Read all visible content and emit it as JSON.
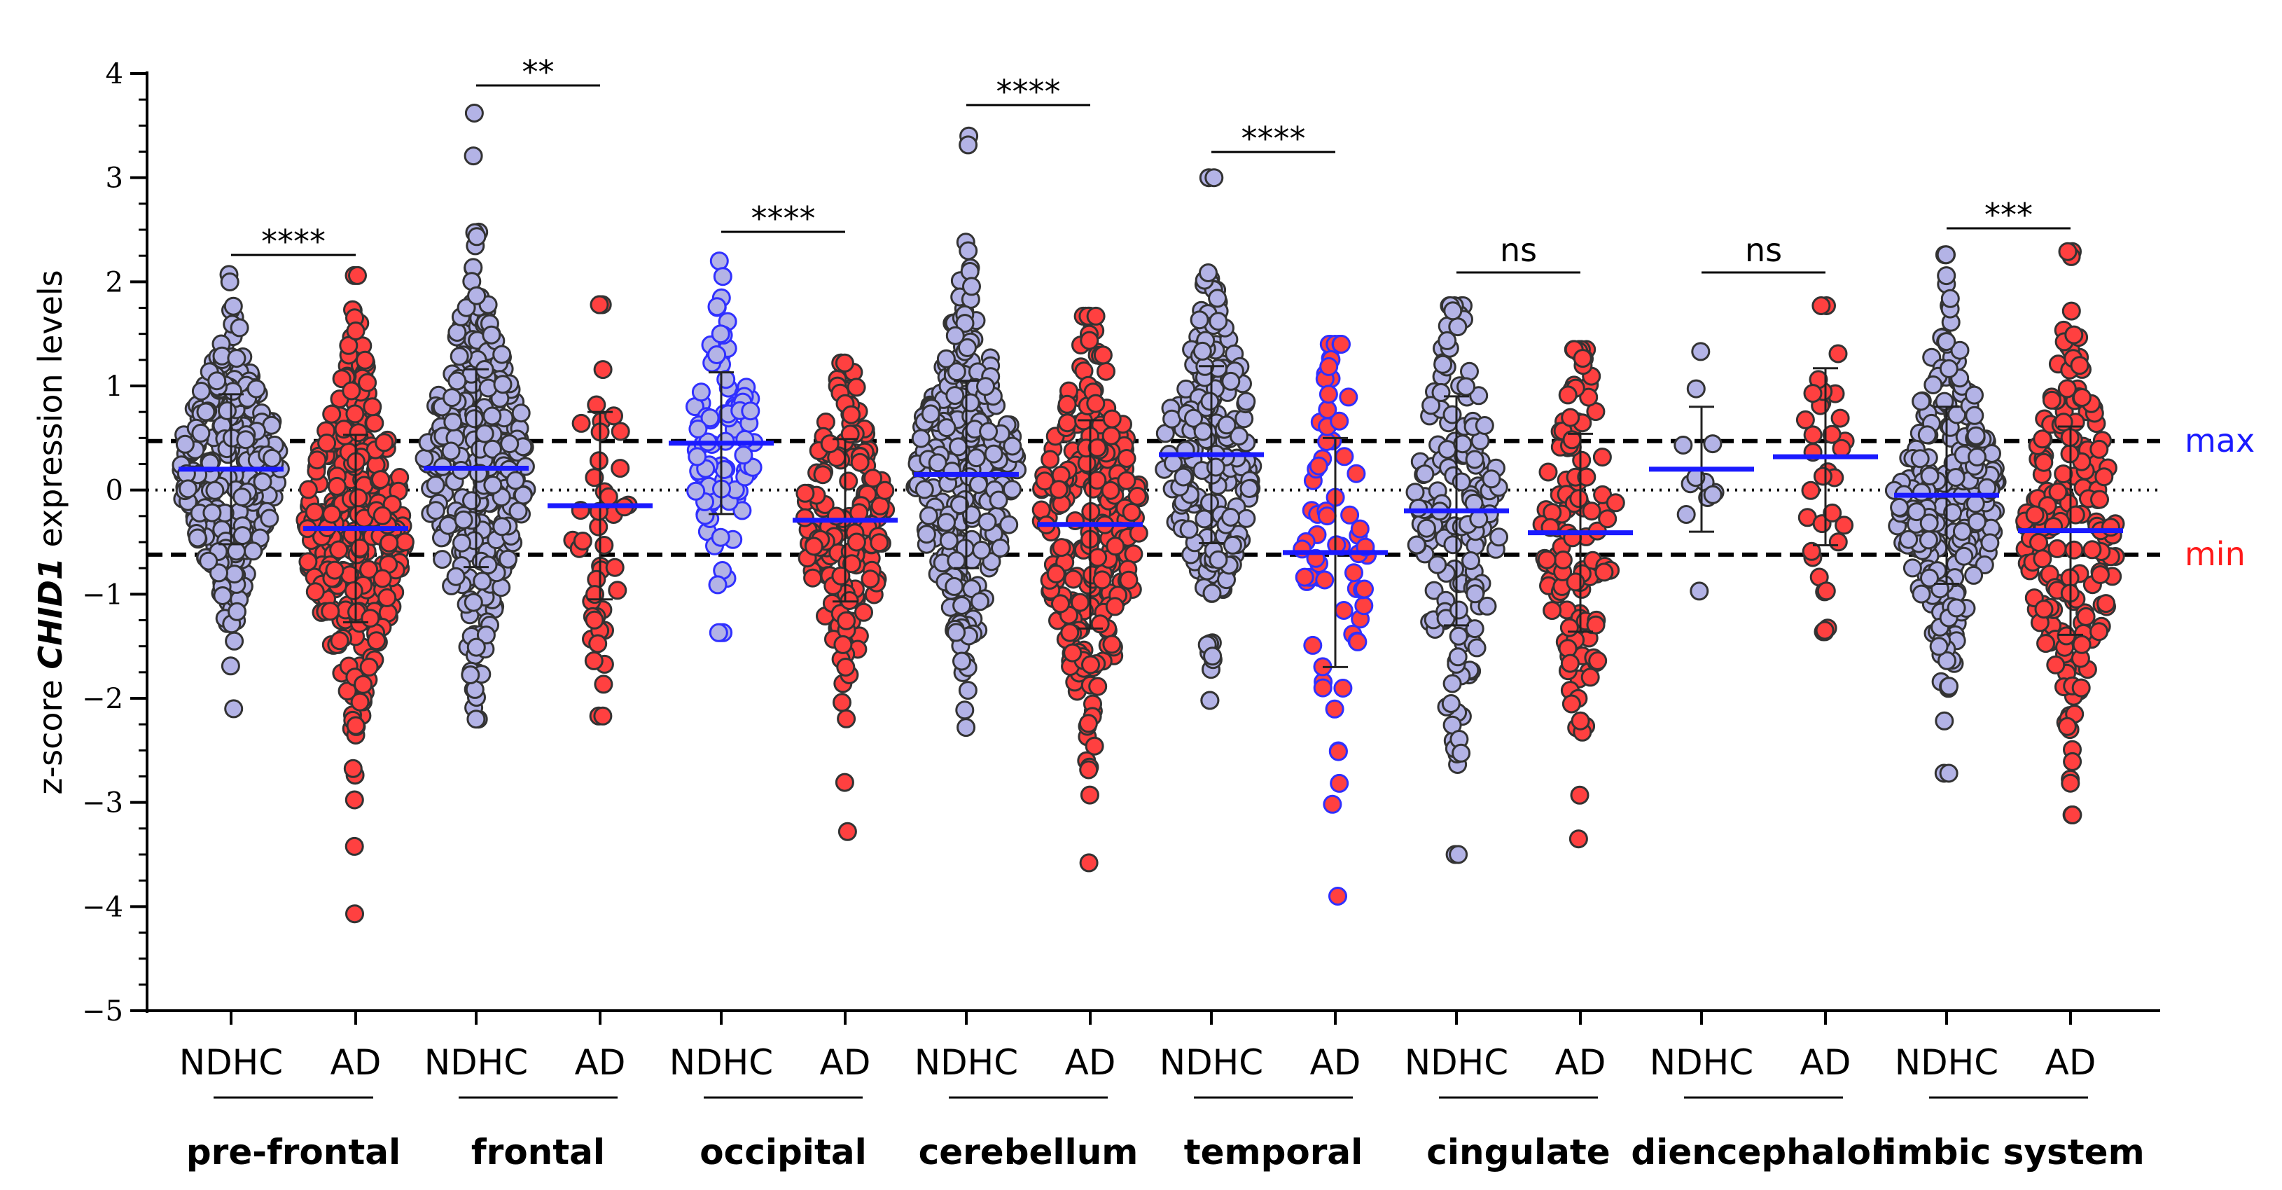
{
  "chart_data": {
    "type": "scatter",
    "subtype": "dot-plot with group means and SD",
    "ylabel": {
      "prefix": "z-score ",
      "gene": "CHID1",
      "suffix": " expression levels"
    },
    "ylim": [
      -5,
      4
    ],
    "yticks": [
      4,
      3,
      2,
      1,
      0,
      -1,
      -2,
      -3,
      -4,
      -5
    ],
    "ytick_labels": [
      "4",
      "3",
      "2",
      "1",
      "0",
      "−1",
      "−2",
      "−3",
      "−4",
      "−5"
    ],
    "reference_lines": [
      {
        "name": "max",
        "y": 0.47,
        "style": "dashed",
        "label_color": "#1a1aff"
      },
      {
        "name": "zero",
        "y": 0,
        "style": "dotted"
      },
      {
        "name": "min",
        "y": -0.62,
        "style": "dashed",
        "label_color": "#ff1a1a"
      }
    ],
    "colors": {
      "ndhc_fill": "#b3b3e6",
      "ndhc_edge": "#333333",
      "ad_fill": "#ff4040",
      "ad_edge": "#333333",
      "mean_line": "#1a1aff",
      "blue_edge": "#3030ff"
    },
    "regions": [
      {
        "name": "pre-frontal",
        "pvalue_label": "****",
        "groups": [
          {
            "label": "NDHC",
            "mean": 0.2,
            "sd": 0.72,
            "n": 300,
            "min": -2.1,
            "max": 2.07,
            "style": "ndhc"
          },
          {
            "label": "AD",
            "mean": -0.37,
            "sd": 0.9,
            "n": 330,
            "min": -4.07,
            "max": 2.06,
            "style": "ad"
          }
        ]
      },
      {
        "name": "frontal",
        "pvalue_label": "**",
        "groups": [
          {
            "label": "NDHC",
            "mean": 0.21,
            "sd": 0.95,
            "n": 300,
            "min": -2.2,
            "max": 3.62,
            "style": "ndhc"
          },
          {
            "label": "AD",
            "mean": -0.15,
            "sd": 0.9,
            "n": 45,
            "min": -2.17,
            "max": 1.78,
            "style": "ad"
          }
        ]
      },
      {
        "name": "occipital",
        "pvalue_label": "****",
        "groups": [
          {
            "label": "NDHC",
            "mean": 0.45,
            "sd": 0.68,
            "n": 90,
            "min": -1.37,
            "max": 2.2,
            "style": "ndhc-blue"
          },
          {
            "label": "AD",
            "mean": -0.29,
            "sd": 0.78,
            "n": 160,
            "min": -3.28,
            "max": 1.22,
            "style": "ad"
          }
        ]
      },
      {
        "name": "cerebellum",
        "pvalue_label": "****",
        "groups": [
          {
            "label": "NDHC",
            "mean": 0.15,
            "sd": 0.9,
            "n": 280,
            "min": -2.28,
            "max": 3.4,
            "style": "ndhc"
          },
          {
            "label": "AD",
            "mean": -0.33,
            "sd": 1.0,
            "n": 250,
            "min": -3.58,
            "max": 1.67,
            "style": "ad"
          }
        ]
      },
      {
        "name": "temporal",
        "pvalue_label": "****",
        "groups": [
          {
            "label": "NDHC",
            "mean": 0.34,
            "sd": 0.85,
            "n": 200,
            "min": -2.02,
            "max": 3.0,
            "style": "ndhc"
          },
          {
            "label": "AD",
            "mean": -0.6,
            "sd": 1.1,
            "n": 70,
            "min": -3.9,
            "max": 1.4,
            "style": "ad-blue"
          }
        ]
      },
      {
        "name": "cingulate",
        "pvalue_label": "ns",
        "groups": [
          {
            "label": "NDHC",
            "mean": -0.2,
            "sd": 1.1,
            "n": 160,
            "min": -3.5,
            "max": 1.77,
            "style": "ndhc"
          },
          {
            "label": "AD",
            "mean": -0.41,
            "sd": 0.95,
            "n": 120,
            "min": -3.35,
            "max": 1.35,
            "style": "ad"
          }
        ]
      },
      {
        "name": "diencephalon",
        "pvalue_label": "ns",
        "groups": [
          {
            "label": "NDHC",
            "mean": 0.2,
            "sd": 0.6,
            "n": 12,
            "min": -0.97,
            "max": 1.33,
            "style": "ndhc"
          },
          {
            "label": "AD",
            "mean": 0.32,
            "sd": 0.85,
            "n": 35,
            "min": -1.36,
            "max": 1.77,
            "style": "ad"
          }
        ]
      },
      {
        "name": "limbic system",
        "pvalue_label": "***",
        "groups": [
          {
            "label": "NDHC",
            "mean": -0.05,
            "sd": 0.85,
            "n": 260,
            "min": -2.72,
            "max": 2.26,
            "style": "ndhc"
          },
          {
            "label": "AD",
            "mean": -0.39,
            "sd": 1.0,
            "n": 190,
            "min": -3.12,
            "max": 2.29,
            "style": "ad"
          }
        ]
      }
    ]
  }
}
